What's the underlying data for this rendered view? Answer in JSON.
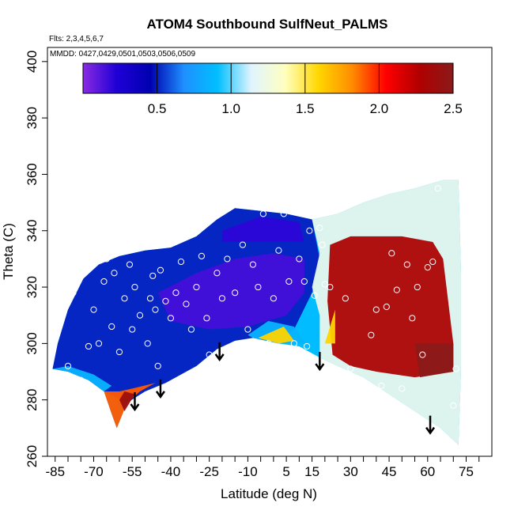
{
  "chart_data": {
    "type": "heatmap",
    "title": "ATOM4 Southbound SulfNeut_PALMS",
    "annotations": {
      "flights": "Flts: 2,3,4,5,6,7",
      "dates": "MMDD: 0427,0429,0501,0503,0506,0509"
    },
    "xlabel": "Latitude (deg N)",
    "ylabel": "Theta (C)",
    "xlim": [
      -88,
      85
    ],
    "ylim": [
      260,
      405
    ],
    "x_ticks": [
      -85,
      -70,
      -55,
      -40,
      -25,
      -10,
      5,
      15,
      30,
      45,
      60,
      75
    ],
    "x_tick_labels": [
      "-85",
      "-70",
      "-55",
      "-40",
      "-25",
      "-10",
      "5",
      "15",
      "30",
      "45",
      "60",
      "75"
    ],
    "y_ticks": [
      260,
      280,
      300,
      320,
      340,
      360,
      380,
      400
    ],
    "y_tick_labels": [
      "260",
      "280",
      "300",
      "320",
      "340",
      "360",
      "380",
      "400"
    ],
    "colorbar": {
      "range": [
        0,
        2.5
      ],
      "ticks": [
        0.5,
        1.0,
        1.5,
        2.0,
        2.5
      ],
      "tick_labels": [
        "0.5",
        "1.0",
        "1.5",
        "2.0",
        "2.5"
      ],
      "colors": [
        "#8a2be2",
        "#1f00d6",
        "#0000b0",
        "#1e90ff",
        "#00bfff",
        "#e0f4ff",
        "#ffffc0",
        "#ffd700",
        "#ff8c00",
        "#ff0000",
        "#b00000",
        "#8b1a1a"
      ]
    },
    "domain_lower_boundary": [
      [
        -86,
        291
      ],
      [
        -80,
        290
      ],
      [
        -72,
        287
      ],
      [
        -66,
        283
      ],
      [
        -63,
        275
      ],
      [
        -61,
        270
      ],
      [
        -57,
        279
      ],
      [
        -50,
        283
      ],
      [
        -42,
        286
      ],
      [
        -30,
        292
      ],
      [
        -22,
        298
      ],
      [
        -15,
        301
      ],
      [
        -8,
        302
      ],
      [
        2,
        300
      ],
      [
        10,
        299
      ],
      [
        18,
        295
      ],
      [
        25,
        292
      ],
      [
        35,
        288
      ],
      [
        45,
        282
      ],
      [
        55,
        276
      ],
      [
        65,
        270
      ],
      [
        72,
        264
      ]
    ],
    "domain_upper_boundary": [
      [
        -86,
        291
      ],
      [
        -84,
        300
      ],
      [
        -80,
        312
      ],
      [
        -74,
        323
      ],
      [
        -68,
        328
      ],
      [
        -60,
        331
      ],
      [
        -50,
        333
      ],
      [
        -40,
        334
      ],
      [
        -30,
        338
      ],
      [
        -22,
        344
      ],
      [
        -15,
        348
      ],
      [
        -5,
        347
      ],
      [
        5,
        346
      ],
      [
        15,
        344
      ],
      [
        25,
        346
      ],
      [
        35,
        350
      ],
      [
        45,
        353
      ],
      [
        55,
        355
      ],
      [
        66,
        358
      ],
      [
        72,
        358
      ],
      [
        73,
        325
      ],
      [
        73,
        291
      ]
    ],
    "color_regions": [
      {
        "value": 0.5,
        "polygon": [
          [
            -86,
            291
          ],
          [
            -84,
            300
          ],
          [
            -80,
            312
          ],
          [
            -74,
            323
          ],
          [
            -68,
            328
          ],
          [
            -60,
            331
          ],
          [
            -50,
            333
          ],
          [
            -40,
            334
          ],
          [
            -30,
            338
          ],
          [
            -22,
            344
          ],
          [
            -15,
            348
          ],
          [
            -5,
            347
          ],
          [
            5,
            346
          ],
          [
            15,
            344
          ],
          [
            18,
            330
          ],
          [
            15,
            318
          ],
          [
            8,
            305
          ],
          [
            2,
            300
          ],
          [
            -8,
            302
          ],
          [
            -15,
            301
          ],
          [
            -22,
            298
          ],
          [
            -30,
            292
          ],
          [
            -42,
            286
          ],
          [
            -50,
            283
          ],
          [
            -57,
            279
          ],
          [
            -66,
            283
          ],
          [
            -72,
            287
          ],
          [
            -80,
            290
          ]
        ]
      },
      {
        "value": 0.15,
        "polygon": [
          [
            -45,
            318
          ],
          [
            -30,
            325
          ],
          [
            -15,
            330
          ],
          [
            0,
            332
          ],
          [
            12,
            330
          ],
          [
            12,
            318
          ],
          [
            5,
            310
          ],
          [
            -10,
            306
          ],
          [
            -25,
            305
          ],
          [
            -40,
            308
          ]
        ]
      },
      {
        "value": 0.2,
        "polygon": [
          [
            -20,
            340
          ],
          [
            -5,
            345
          ],
          [
            10,
            343
          ],
          [
            12,
            336
          ],
          [
            -5,
            336
          ],
          [
            -20,
            336
          ]
        ]
      },
      {
        "value": 1.2,
        "polygon": [
          [
            15,
            344
          ],
          [
            25,
            346
          ],
          [
            35,
            350
          ],
          [
            45,
            353
          ],
          [
            55,
            355
          ],
          [
            66,
            358
          ],
          [
            72,
            358
          ],
          [
            73,
            325
          ],
          [
            73,
            291
          ],
          [
            72,
            264
          ],
          [
            65,
            270
          ],
          [
            55,
            276
          ],
          [
            45,
            282
          ],
          [
            35,
            288
          ],
          [
            25,
            292
          ],
          [
            18,
            295
          ],
          [
            18,
            310
          ],
          [
            15,
            320
          ],
          [
            18,
            332
          ]
        ]
      },
      {
        "value": 2.3,
        "polygon": [
          [
            22,
            335
          ],
          [
            30,
            338
          ],
          [
            50,
            338
          ],
          [
            62,
            336
          ],
          [
            66,
            330
          ],
          [
            68,
            315
          ],
          [
            70,
            300
          ],
          [
            70,
            290
          ],
          [
            55,
            288
          ],
          [
            40,
            290
          ],
          [
            30,
            292
          ],
          [
            23,
            296
          ],
          [
            21,
            315
          ]
        ]
      },
      {
        "value": 2.5,
        "polygon": [
          [
            55,
            300
          ],
          [
            70,
            300
          ],
          [
            70,
            290
          ],
          [
            57,
            288
          ]
        ]
      },
      {
        "value": 1.6,
        "polygon": [
          [
            20,
            300
          ],
          [
            24,
            312
          ],
          [
            24,
            300
          ]
        ]
      },
      {
        "value": 0.85,
        "polygon": [
          [
            -86,
            291
          ],
          [
            -80,
            290
          ],
          [
            -72,
            287
          ],
          [
            -66,
            283
          ],
          [
            -63,
            285
          ],
          [
            -70,
            289
          ],
          [
            -80,
            292
          ]
        ]
      },
      {
        "value": 0.85,
        "polygon": [
          [
            -10,
            303
          ],
          [
            -2,
            308
          ],
          [
            8,
            306
          ],
          [
            12,
            300
          ],
          [
            2,
            300
          ],
          [
            -8,
            302
          ]
        ]
      },
      {
        "value": 1.9,
        "polygon": [
          [
            -66,
            283
          ],
          [
            -63,
            275
          ],
          [
            -61,
            270
          ],
          [
            -57,
            279
          ],
          [
            -52,
            283
          ],
          [
            -46,
            286
          ],
          [
            -55,
            284
          ],
          [
            -60,
            283
          ]
        ]
      },
      {
        "value": 2.4,
        "polygon": [
          [
            -60,
            280
          ],
          [
            -58,
            276
          ],
          [
            -54,
            282
          ],
          [
            -58,
            283
          ]
        ]
      },
      {
        "value": 1.6,
        "polygon": [
          [
            -6,
            302
          ],
          [
            4,
            306
          ],
          [
            8,
            301
          ],
          [
            2,
            300
          ]
        ]
      }
    ],
    "arrows_x": [
      -54,
      -44,
      -21,
      18,
      61
    ],
    "points": [
      [
        -80,
        292
      ],
      [
        -78,
        318
      ],
      [
        -75,
        287
      ],
      [
        -72,
        299
      ],
      [
        -70,
        312
      ],
      [
        -68,
        300
      ],
      [
        -66,
        322
      ],
      [
        -65,
        330
      ],
      [
        -63,
        306
      ],
      [
        -62,
        325
      ],
      [
        -60,
        297
      ],
      [
        -58,
        316
      ],
      [
        -56,
        328
      ],
      [
        -55,
        305
      ],
      [
        -54,
        320
      ],
      [
        -52,
        310
      ],
      [
        -50,
        335
      ],
      [
        -49,
        300
      ],
      [
        -48,
        316
      ],
      [
        -47,
        324
      ],
      [
        -46,
        312
      ],
      [
        -45,
        292
      ],
      [
        -44,
        326
      ],
      [
        -42,
        315
      ],
      [
        -40,
        309
      ],
      [
        -38,
        318
      ],
      [
        -36,
        329
      ],
      [
        -34,
        314
      ],
      [
        -32,
        305
      ],
      [
        -30,
        320
      ],
      [
        -28,
        331
      ],
      [
        -26,
        309
      ],
      [
        -25,
        296
      ],
      [
        -22,
        325
      ],
      [
        -20,
        316
      ],
      [
        -18,
        330
      ],
      [
        -15,
        318
      ],
      [
        -12,
        335
      ],
      [
        -10,
        305
      ],
      [
        -8,
        328
      ],
      [
        -6,
        320
      ],
      [
        -4,
        346
      ],
      [
        -2,
        300
      ],
      [
        0,
        316
      ],
      [
        2,
        333
      ],
      [
        4,
        346
      ],
      [
        6,
        322
      ],
      [
        8,
        300
      ],
      [
        10,
        330
      ],
      [
        12,
        322
      ],
      [
        13,
        299
      ],
      [
        14,
        340
      ],
      [
        16,
        317
      ],
      [
        18,
        341
      ],
      [
        19,
        335
      ],
      [
        20,
        321
      ],
      [
        22,
        320
      ],
      [
        28,
        316
      ],
      [
        30,
        291
      ],
      [
        38,
        303
      ],
      [
        40,
        312
      ],
      [
        42,
        285
      ],
      [
        44,
        313
      ],
      [
        46,
        332
      ],
      [
        48,
        319
      ],
      [
        50,
        284
      ],
      [
        52,
        328
      ],
      [
        54,
        309
      ],
      [
        56,
        320
      ],
      [
        58,
        296
      ],
      [
        60,
        327
      ],
      [
        62,
        329
      ],
      [
        64,
        355
      ],
      [
        70,
        278
      ],
      [
        71,
        291
      ]
    ]
  }
}
